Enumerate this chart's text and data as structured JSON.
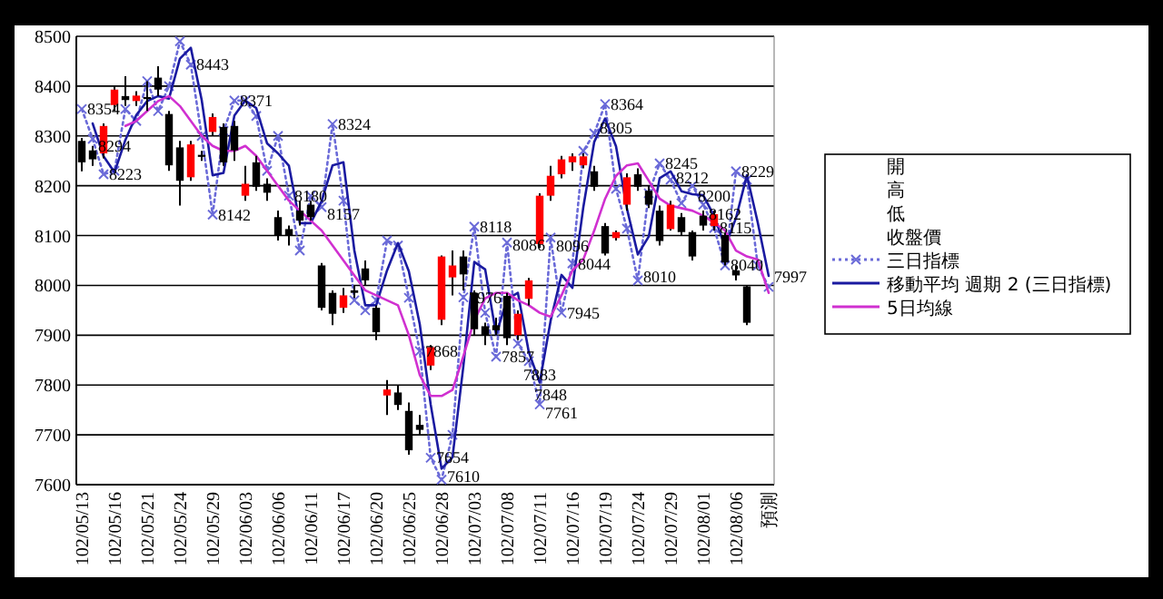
{
  "chart_data": {
    "type": "candlestick",
    "categories": [
      "102/05/13",
      null,
      null,
      "102/05/16",
      null,
      null,
      "102/05/21",
      null,
      null,
      "102/05/24",
      null,
      null,
      "102/05/29",
      null,
      null,
      "102/06/03",
      null,
      null,
      "102/06/06",
      null,
      null,
      "102/06/11",
      null,
      null,
      "102/06/17",
      null,
      null,
      "102/06/20",
      null,
      null,
      "102/06/25",
      null,
      null,
      "102/06/28",
      null,
      null,
      "102/07/03",
      null,
      null,
      "102/07/08",
      null,
      null,
      "102/07/11",
      null,
      null,
      "102/07/16",
      null,
      null,
      "102/07/19",
      null,
      null,
      "102/07/24",
      null,
      null,
      "102/07/29",
      null,
      null,
      "102/08/01",
      null,
      null,
      "102/08/06",
      null,
      null,
      "預測"
    ],
    "ohlc": [
      [
        8290,
        8296,
        8229,
        8247
      ],
      [
        8271,
        8280,
        8240,
        8253
      ],
      [
        8265,
        8325,
        8255,
        8320
      ],
      [
        8362,
        8400,
        8350,
        8393
      ],
      [
        8380,
        8420,
        8360,
        8372
      ],
      [
        8370,
        8390,
        8360,
        8381
      ],
      [
        8378,
        8410,
        8350,
        8374
      ],
      [
        8417,
        8440,
        8380,
        8393
      ],
      [
        8344,
        8350,
        8230,
        8241
      ],
      [
        8277,
        8290,
        8160,
        8210
      ],
      [
        8217,
        8290,
        8210,
        8283
      ],
      [
        8262,
        8270,
        8250,
        8258
      ],
      [
        8308,
        8345,
        8300,
        8338
      ],
      [
        8318,
        8325,
        8240,
        8247
      ],
      [
        8320,
        8330,
        8250,
        8271
      ],
      [
        8180,
        8240,
        8170,
        8204
      ],
      [
        8247,
        8260,
        8190,
        8198
      ],
      [
        8204,
        8215,
        8170,
        8186
      ],
      [
        8137,
        8150,
        8090,
        8101
      ],
      [
        8113,
        8120,
        8080,
        8101
      ],
      [
        8150,
        8170,
        8120,
        8130
      ],
      [
        8162,
        8170,
        8130,
        8137
      ],
      [
        8040,
        8045,
        7950,
        7955
      ],
      [
        7985,
        7990,
        7920,
        7943
      ],
      [
        7955,
        7995,
        7945,
        7980
      ],
      [
        7990,
        8000,
        7975,
        7985
      ],
      [
        8034,
        8050,
        8000,
        8010
      ],
      [
        7955,
        7960,
        7890,
        7906
      ],
      [
        7779,
        7810,
        7740,
        7791
      ],
      [
        7785,
        7800,
        7750,
        7760
      ],
      [
        7748,
        7765,
        7660,
        7669
      ],
      [
        7720,
        7740,
        7700,
        7710
      ],
      [
        7839,
        7880,
        7830,
        7876
      ],
      [
        7931,
        8060,
        7920,
        8058
      ],
      [
        8016,
        8070,
        7980,
        8040
      ],
      [
        8058,
        8070,
        7990,
        8022
      ],
      [
        7985,
        7990,
        7900,
        7912
      ],
      [
        7918,
        7925,
        7880,
        7900
      ],
      [
        7920,
        7935,
        7900,
        7910
      ],
      [
        7979,
        7985,
        7880,
        7894
      ],
      [
        7900,
        7950,
        7890,
        7943
      ],
      [
        7973,
        8015,
        7960,
        8010
      ],
      [
        8083,
        8185,
        8075,
        8180
      ],
      [
        8180,
        8240,
        8170,
        8220
      ],
      [
        8223,
        8260,
        8215,
        8253
      ],
      [
        8247,
        8265,
        8230,
        8259
      ],
      [
        8241,
        8265,
        8235,
        8259
      ],
      [
        8229,
        8240,
        8190,
        8198
      ],
      [
        8119,
        8125,
        8060,
        8064
      ],
      [
        8095,
        8110,
        8090,
        8107
      ],
      [
        8162,
        8225,
        8150,
        8217
      ],
      [
        8223,
        8235,
        8190,
        8198
      ],
      [
        8190,
        8200,
        8155,
        8162
      ],
      [
        8150,
        8160,
        8080,
        8089
      ],
      [
        8113,
        8170,
        8110,
        8162
      ],
      [
        8137,
        8145,
        8100,
        8107
      ],
      [
        8107,
        8110,
        8050,
        8058
      ],
      [
        8140,
        8150,
        8110,
        8120
      ],
      [
        8119,
        8150,
        8110,
        8143
      ],
      [
        8101,
        8105,
        8040,
        8046
      ],
      [
        8030,
        8040,
        8010,
        8020
      ],
      [
        7998,
        8000,
        7920,
        7925
      ],
      null,
      null
    ],
    "colors": [
      "#000000",
      "#000000",
      "#ff0000",
      "#ff0000",
      "#000000",
      "#ff0000",
      "#000000",
      "#000000",
      "#000000",
      "#000000",
      "#ff0000",
      "#000000",
      "#ff0000",
      "#000000",
      "#000000",
      "#ff0000",
      "#000000",
      "#000000",
      "#000000",
      "#000000",
      "#000000",
      "#000000",
      "#000000",
      "#000000",
      "#ff0000",
      "#000000",
      "#000000",
      "#000000",
      "#ff0000",
      "#000000",
      "#000000",
      "#000000",
      "#ff0000",
      "#ff0000",
      "#ff0000",
      "#000000",
      "#000000",
      "#000000",
      "#000000",
      "#000000",
      "#ff0000",
      "#ff0000",
      "#ff0000",
      "#ff0000",
      "#ff0000",
      "#ff0000",
      "#ff0000",
      "#000000",
      "#000000",
      "#ff0000",
      "#ff0000",
      "#000000",
      "#000000",
      "#000000",
      "#ff0000",
      "#000000",
      "#000000",
      "#000000",
      "#ff0000",
      "#000000",
      "#000000",
      "#000000",
      null,
      null
    ],
    "series": [
      {
        "name": "三日指標",
        "type": "line",
        "color": "#6a6ad8",
        "line_style": "dotted",
        "marker": "cross",
        "values": [
          8354,
          8294,
          8223,
          8230,
          8354,
          8330,
          8410,
          8350,
          8400,
          8490,
          8443,
          8300,
          8142,
          8310,
          8371,
          8371,
          8340,
          8230,
          8300,
          8180,
          8070,
          8180,
          8157,
          8324,
          8170,
          7970,
          7950,
          7970,
          8090,
          8080,
          7975,
          7868,
          7654,
          7610,
          7700,
          7976,
          8118,
          7945,
          7857,
          8086,
          7883,
          7848,
          7761,
          8096,
          7945,
          8044,
          8270,
          8305,
          8364,
          8194,
          8114,
          8010,
          8185,
          8245,
          8212,
          8165,
          8200,
          8162,
          8115,
          8040,
          8229,
          8212,
          8040,
          7997
        ],
        "value_labels": [
          "8354",
          "8294",
          "8223",
          null,
          null,
          null,
          null,
          null,
          null,
          null,
          "8443",
          null,
          "8142",
          null,
          "8371",
          null,
          null,
          null,
          null,
          "8180",
          null,
          null,
          "8157",
          "8324",
          null,
          null,
          null,
          null,
          null,
          null,
          null,
          "7868",
          "7654",
          "7610",
          null,
          "7976",
          "8118",
          null,
          "7857",
          "8086",
          "7883",
          "7848",
          "7761",
          "8096",
          "7945",
          "8044",
          null,
          "8305",
          "8364",
          null,
          null,
          "8010",
          null,
          "8245",
          "8212",
          null,
          "8200",
          "8162",
          "8115",
          "8040",
          "8229",
          null,
          null,
          "7997"
        ]
      },
      {
        "name": "移動平均 週期 2 (三日指標)",
        "type": "line",
        "color": "#1a1aa0",
        "line_style": "solid",
        "marker": "none",
        "values": [
          null,
          8325,
          8259,
          8227,
          8292,
          8342,
          8370,
          8380,
          8375,
          8455,
          8477,
          8372,
          8221,
          8226,
          8341,
          8371,
          8356,
          8285,
          8265,
          8240,
          8125,
          8125,
          8169,
          8241,
          8247,
          8070,
          7960,
          7960,
          8030,
          8085,
          8028,
          7922,
          7761,
          7632,
          7655,
          7838,
          8047,
          8032,
          7901,
          7972,
          7985,
          7866,
          7805,
          7929,
          8021,
          7995,
          8157,
          8288,
          8335,
          8279,
          8154,
          8062,
          8098,
          8215,
          8229,
          8189,
          8183,
          8181,
          8139,
          8078,
          8135,
          8221,
          8126,
          8019
        ]
      },
      {
        "name": "5日均線",
        "type": "line",
        "color": "#d030d0",
        "line_style": "solid",
        "marker": "none",
        "values": [
          null,
          null,
          null,
          null,
          8320,
          8330,
          8350,
          8370,
          8380,
          8360,
          8330,
          8300,
          8280,
          8270,
          8270,
          8280,
          8260,
          8230,
          8200,
          8170,
          8150,
          8130,
          8110,
          8080,
          8050,
          8020,
          7990,
          7980,
          7970,
          7960,
          7900,
          7820,
          7778,
          7778,
          7790,
          7858,
          7930,
          7974,
          7985,
          7985,
          7970,
          7960,
          7945,
          7937,
          7980,
          8030,
          8052,
          8110,
          8174,
          8220,
          8241,
          8245,
          8210,
          8174,
          8160,
          8155,
          8150,
          8140,
          8126,
          8110,
          8070,
          8058,
          8052,
          7985
        ]
      }
    ],
    "annotations": [
      "開",
      "高",
      "低",
      "收盤價"
    ],
    "ylim": [
      7600,
      8500
    ],
    "yticks": [
      7600,
      7700,
      7800,
      7900,
      8000,
      8100,
      8200,
      8300,
      8400,
      8500
    ],
    "grid": "y",
    "legend": "right"
  }
}
